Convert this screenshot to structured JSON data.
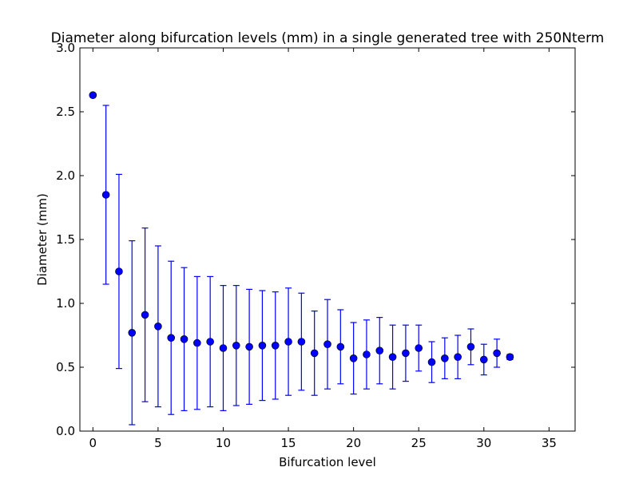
{
  "chart_data": {
    "type": "scatter",
    "title": "Diameter along bifurcation levels (mm) in a single generated tree with 250Nterm",
    "xlabel": "Bifurcation level",
    "ylabel": "Diameter (mm)",
    "xlim": [
      -1,
      37
    ],
    "ylim": [
      0,
      3.0
    ],
    "xticks": [
      0,
      5,
      10,
      15,
      20,
      25,
      30,
      35
    ],
    "yticks": [
      0.0,
      0.5,
      1.0,
      1.5,
      2.0,
      2.5,
      3.0
    ],
    "xtick_labels": [
      "0",
      "5",
      "10",
      "15",
      "20",
      "25",
      "30",
      "35"
    ],
    "ytick_labels": [
      "0.0",
      "0.5",
      "1.0",
      "1.5",
      "2.0",
      "2.5",
      "3.0"
    ],
    "grid": false,
    "legend": "none",
    "marker_color": "#0000ff",
    "errorbar_color": "#0000ff",
    "series": [
      {
        "x": [
          0,
          1,
          2,
          3,
          4,
          5,
          6,
          7,
          8,
          9,
          10,
          11,
          12,
          13,
          14,
          15,
          16,
          17,
          18,
          19,
          20,
          21,
          22,
          23,
          24,
          25,
          26,
          27,
          28,
          29,
          30,
          31,
          32
        ],
        "y": [
          2.63,
          1.85,
          1.25,
          0.77,
          0.91,
          0.82,
          0.73,
          0.72,
          0.69,
          0.7,
          0.65,
          0.67,
          0.66,
          0.67,
          0.67,
          0.7,
          0.7,
          0.61,
          0.68,
          0.66,
          0.57,
          0.6,
          0.63,
          0.58,
          0.61,
          0.65,
          0.54,
          0.57,
          0.58,
          0.66,
          0.56,
          0.61,
          0.58
        ],
        "err": [
          0.0,
          0.7,
          0.76,
          0.72,
          0.68,
          0.63,
          0.6,
          0.56,
          0.52,
          0.51,
          0.49,
          0.47,
          0.45,
          0.43,
          0.42,
          0.42,
          0.38,
          0.33,
          0.35,
          0.29,
          0.28,
          0.27,
          0.26,
          0.25,
          0.22,
          0.18,
          0.16,
          0.16,
          0.17,
          0.14,
          0.12,
          0.11,
          0.02
        ]
      }
    ]
  }
}
